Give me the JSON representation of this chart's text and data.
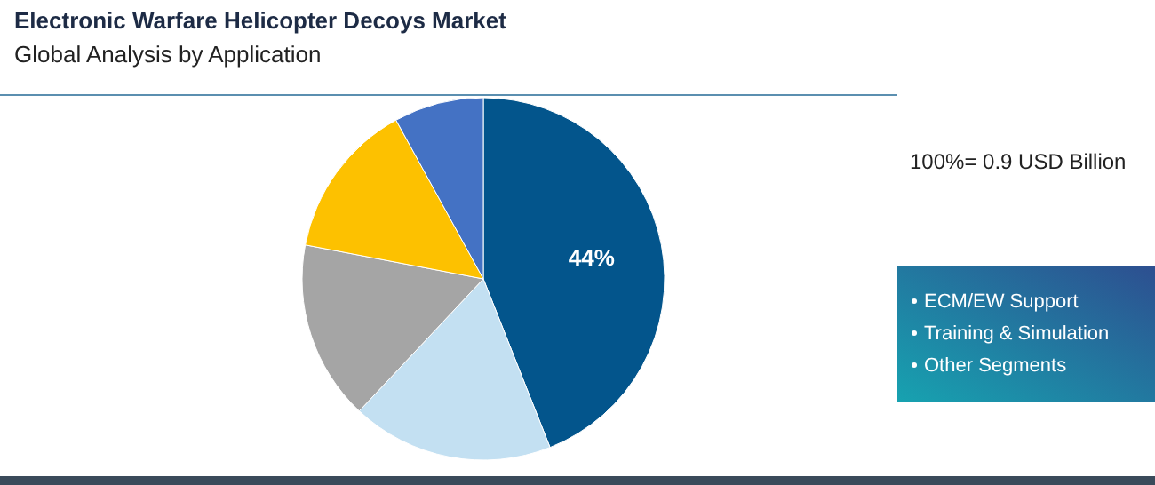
{
  "chart_data": {
    "type": "pie",
    "title": "Electronic Warfare Helicopter Decoys Market",
    "subtitle": "Global Analysis by Application",
    "categories": [
      null,
      null,
      null,
      null,
      null
    ],
    "values": [
      44,
      18,
      16,
      14,
      8
    ],
    "colors": [
      "#03558c",
      "#c3e0f2",
      "#a5a5a5",
      "#fdc100",
      "#4472c4"
    ],
    "value_labels": [
      "44%",
      null,
      null,
      null,
      null
    ],
    "annotations": [
      "100%= 0.9 USD Billion",
      "ECM/EW Support",
      "Training & Simulation",
      "Other Segments"
    ],
    "legend": false
  }
}
